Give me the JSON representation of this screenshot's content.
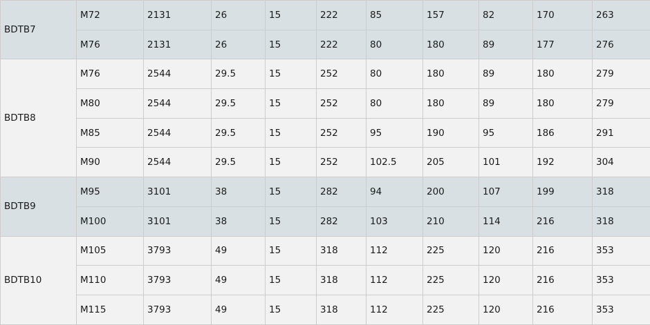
{
  "colors": {
    "band_a": "#d8e0e3",
    "band_b": "#f2f2f2",
    "border": "#cccccc"
  },
  "groups": [
    {
      "name": "BDTB7",
      "rows": [
        [
          "M72",
          "2131",
          "26",
          "15",
          "222",
          "85",
          "157",
          "82",
          "170",
          "263"
        ],
        [
          "M76",
          "2131",
          "26",
          "15",
          "222",
          "80",
          "180",
          "89",
          "177",
          "276"
        ]
      ]
    },
    {
      "name": "BDTB8",
      "rows": [
        [
          "M76",
          "2544",
          "29.5",
          "15",
          "252",
          "80",
          "180",
          "89",
          "180",
          "279"
        ],
        [
          "M80",
          "2544",
          "29.5",
          "15",
          "252",
          "80",
          "180",
          "89",
          "180",
          "279"
        ],
        [
          "M85",
          "2544",
          "29.5",
          "15",
          "252",
          "95",
          "190",
          "95",
          "186",
          "291"
        ],
        [
          "M90",
          "2544",
          "29.5",
          "15",
          "252",
          "102.5",
          "205",
          "101",
          "192",
          "304"
        ]
      ]
    },
    {
      "name": "BDTB9",
      "rows": [
        [
          "M95",
          "3101",
          "38",
          "15",
          "282",
          "94",
          "200",
          "107",
          "199",
          "318"
        ],
        [
          "M100",
          "3101",
          "38",
          "15",
          "282",
          "103",
          "210",
          "114",
          "216",
          "318"
        ]
      ]
    },
    {
      "name": "BDTB10",
      "rows": [
        [
          "M105",
          "3793",
          "49",
          "15",
          "318",
          "112",
          "225",
          "120",
          "216",
          "353"
        ],
        [
          "M110",
          "3793",
          "49",
          "15",
          "318",
          "112",
          "225",
          "120",
          "216",
          "353"
        ],
        [
          "M115",
          "3793",
          "49",
          "15",
          "318",
          "112",
          "225",
          "120",
          "216",
          "353"
        ]
      ]
    }
  ]
}
